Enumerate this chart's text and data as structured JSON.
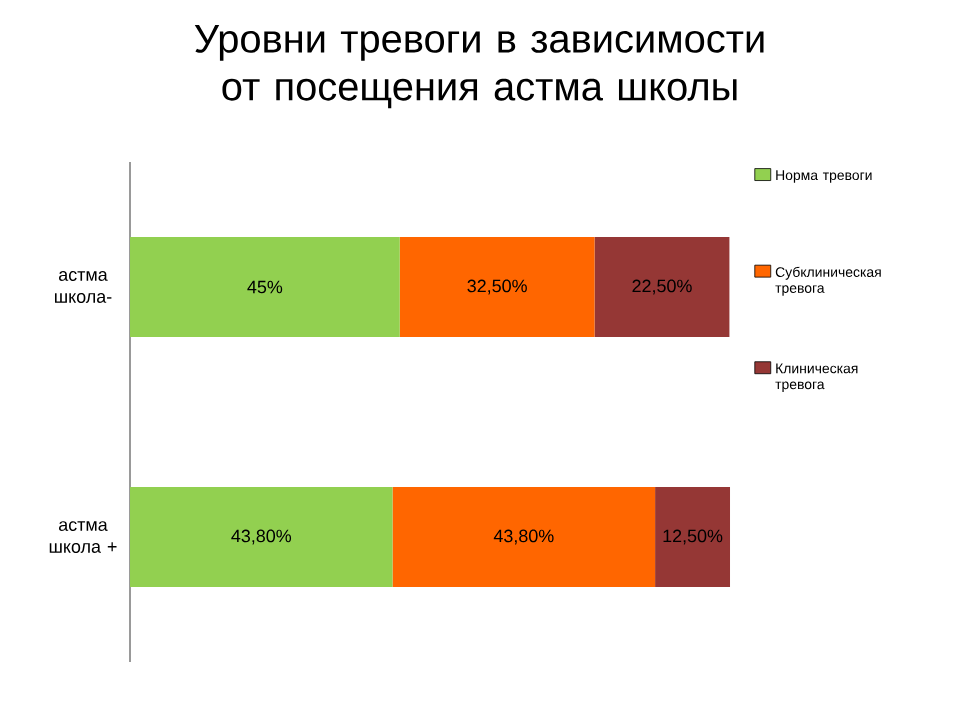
{
  "chart_data": {
    "type": "bar",
    "orientation": "horizontal",
    "stacked": true,
    "title": "Уровни тревоги в зависимости от посещения астма школы",
    "categories": [
      "астма школа-",
      "астма школа +"
    ],
    "series": [
      {
        "name": "Норма тревоги",
        "color": "#92d050",
        "values": [
          45,
          43.8
        ],
        "value_labels": [
          "45%",
          "43,80%"
        ]
      },
      {
        "name": "Субклиническая тревога",
        "color": "#ff6600",
        "values": [
          32.5,
          43.8
        ],
        "value_labels": [
          "32,50%",
          "43,80%"
        ]
      },
      {
        "name": "Клиническая тревога",
        "color": "#953735",
        "values": [
          22.5,
          12.5
        ],
        "value_labels": [
          "22,50%",
          "12,50%"
        ]
      }
    ],
    "legend": "right"
  }
}
